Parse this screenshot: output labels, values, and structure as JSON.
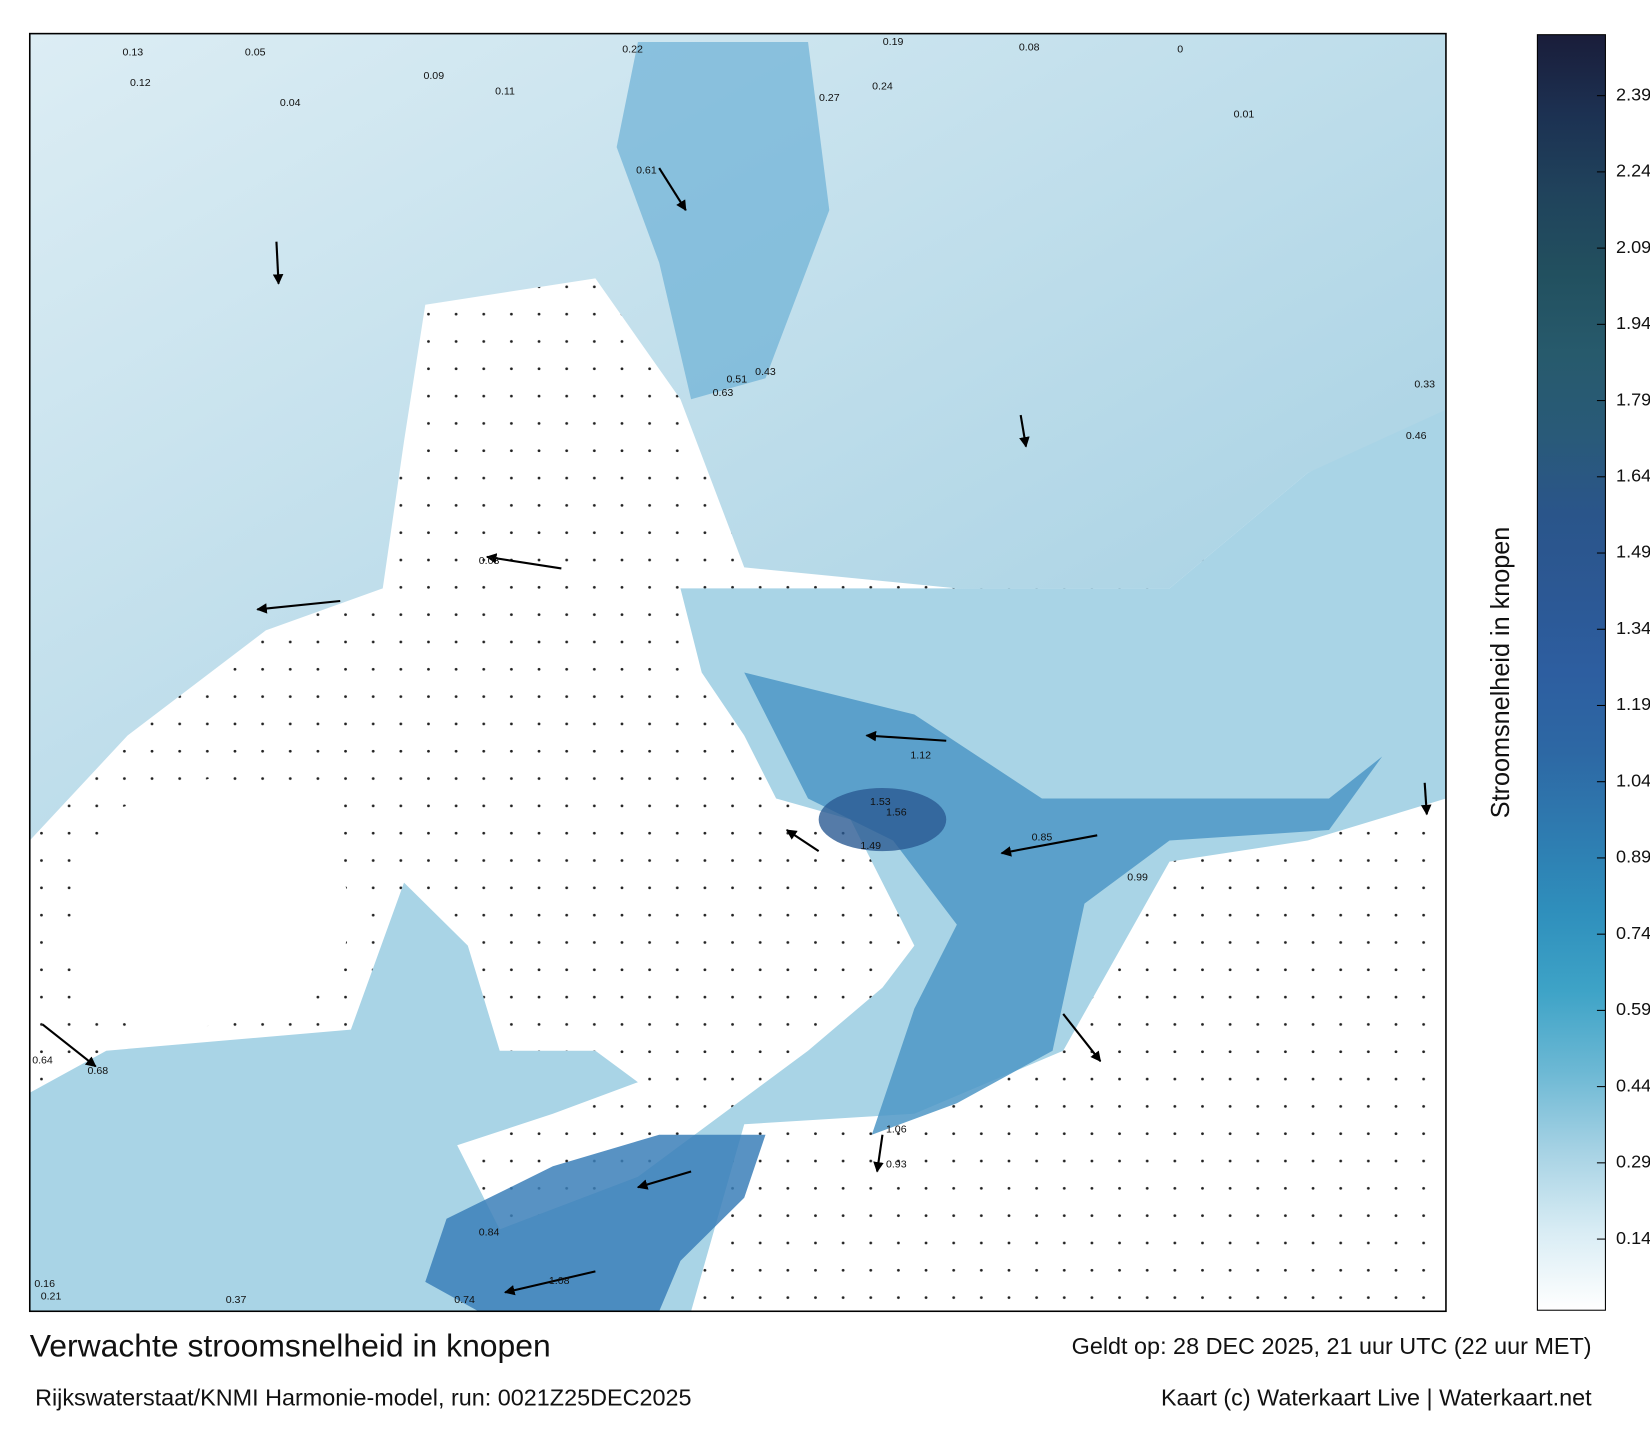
{
  "map": {
    "title": "Verwachte stroomsnelheid in knopen",
    "source": "Rijkswaterstaat/KNMI Harmonie-model, run: 0021Z25DEC2025",
    "valid": "Geldt op: 28 DEC 2025, 21 uur UTC (22 uur MET)",
    "credit": "Kaart (c) Waterkaart Live | Waterkaart.net",
    "colorbar": {
      "label": "Stroomsnelheid in knopen",
      "range": [
        0,
        2.51
      ],
      "ticks": [
        0.14,
        0.29,
        0.44,
        0.59,
        0.74,
        0.89,
        1.04,
        1.19,
        1.34,
        1.49,
        1.64,
        1.79,
        1.94,
        2.09,
        2.24,
        2.39
      ],
      "colors": [
        "#ffffff",
        "#d8ecf4",
        "#a6d2e4",
        "#6cb8d4",
        "#3ea3c7",
        "#2f8fbc",
        "#2e7bb0",
        "#2d68a4",
        "#2d5ea0",
        "#2c5894",
        "#2a558a",
        "#295a78",
        "#275a6c",
        "#22505f",
        "#20435c",
        "#1c3152",
        "#1a1d3a"
      ]
    },
    "speed_labels": [
      0.13,
      0.05,
      0.12,
      0.09,
      0.04,
      0.11,
      0.22,
      0.19,
      0.08,
      0.27,
      0.24,
      0.61,
      0.43,
      0.51,
      0.63,
      1.53,
      1.56,
      1.49,
      1.12,
      0.85,
      0.99,
      0.64,
      0.68,
      0.37,
      0.74,
      1.08,
      0.84,
      1.06,
      0.93,
      0.46,
      0.33,
      0.01,
      0,
      0.03,
      0.21,
      0.16
    ]
  }
}
